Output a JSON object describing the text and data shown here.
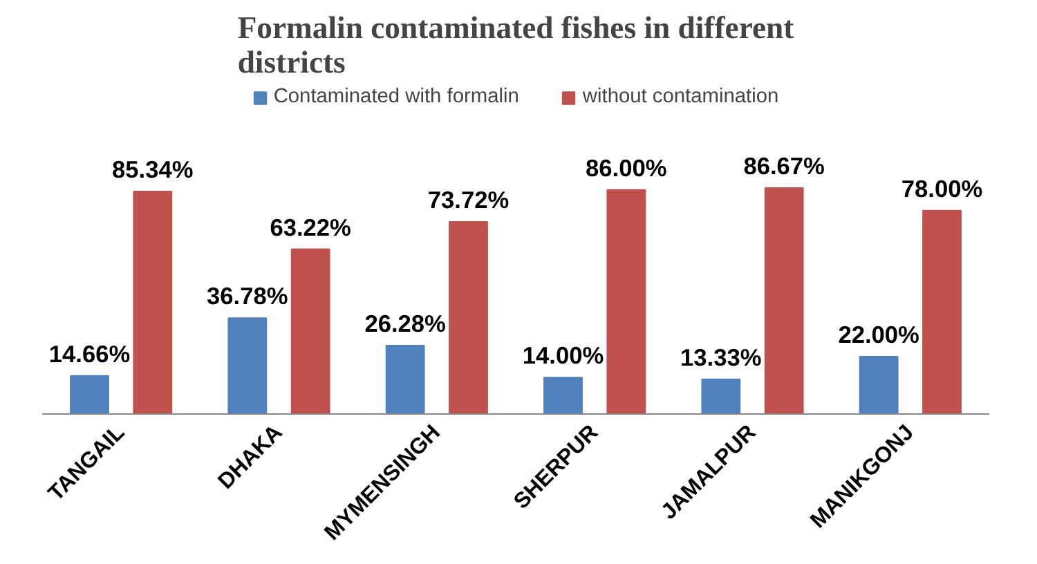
{
  "chart_data": {
    "type": "bar",
    "title": "Formalin contaminated fishes in different districts",
    "categories": [
      "TANGAIL",
      "DHAKA",
      "MYMENSINGH",
      "SHERPUR",
      "JAMALPUR",
      "MANIKGONJ"
    ],
    "series": [
      {
        "name": "Contaminated with formalin",
        "color": "#4f81bd",
        "values": [
          14.66,
          36.78,
          26.28,
          14.0,
          13.33,
          22.0
        ],
        "value_labels": [
          "14.66%",
          "36.78%",
          "26.28%",
          "14.00%",
          "13.33%",
          "22.00%"
        ]
      },
      {
        "name": "without contamination",
        "color": "#c0504d",
        "values": [
          85.34,
          63.22,
          73.72,
          86.0,
          86.67,
          78.0
        ],
        "value_labels": [
          "85.34%",
          "63.22%",
          "73.72%",
          "86.00%",
          "86.67%",
          "78.00%"
        ]
      }
    ],
    "legend": "top",
    "grid": false
  }
}
